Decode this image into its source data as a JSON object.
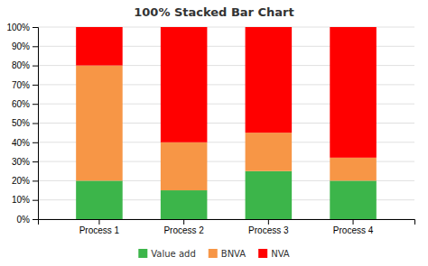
{
  "chart_data": {
    "type": "bar",
    "title": "100% Stacked Bar Chart",
    "categories": [
      "Process 1",
      "Process 2",
      "Process 3",
      "Process 4"
    ],
    "series": [
      {
        "name": "Value add",
        "color": "#3CB54A",
        "values": [
          20,
          15,
          25,
          20
        ]
      },
      {
        "name": "BNVA",
        "color": "#F79646",
        "values": [
          60,
          25,
          20,
          12
        ]
      },
      {
        "name": "NVA",
        "color": "#FF0000",
        "values": [
          20,
          60,
          55,
          68
        ]
      }
    ],
    "stacked": true,
    "ylim": [
      0,
      100
    ],
    "yticks": [
      {
        "value": 0,
        "label": "0%"
      },
      {
        "value": 10,
        "label": "10%"
      },
      {
        "value": 20,
        "label": "20%"
      },
      {
        "value": 30,
        "label": "30%"
      },
      {
        "value": 40,
        "label": "40%"
      },
      {
        "value": 50,
        "label": "50%"
      },
      {
        "value": 60,
        "label": "60%"
      },
      {
        "value": 70,
        "label": "70%"
      },
      {
        "value": 80,
        "label": "80%"
      },
      {
        "value": 90,
        "label": "90%"
      },
      {
        "value": 100,
        "label": "100%"
      }
    ],
    "grid": true,
    "legend": "bottom"
  }
}
